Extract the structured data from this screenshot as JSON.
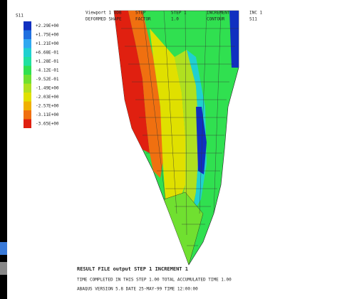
{
  "legend": {
    "title": "S11",
    "labels": [
      "+2.29E+00",
      "+1.75E+00",
      "+1.21E+00",
      "+6.68E-01",
      "+1.28E-01",
      "-4.12E-01",
      "-9.52E-01",
      "-1.49E+00",
      "-2.03E+00",
      "-2.57E+00",
      "-3.11E+00",
      "-3.65E+00"
    ],
    "colors": [
      "#1030c0",
      "#2070e0",
      "#30a8f0",
      "#20d0d0",
      "#20e0a0",
      "#30e050",
      "#70e030",
      "#b0e020",
      "#e0e000",
      "#f0b000",
      "#f07010",
      "#e02010"
    ]
  },
  "header": {
    "line1": [
      "Viewport 1 ODB",
      "STEP",
      "STEP 1",
      "INCREMENT",
      "INC 1"
    ],
    "line2": [
      "DEFORMED SHAPE",
      "FACTOR",
      "1.0",
      "CONTOUR",
      "S11"
    ]
  },
  "footer": {
    "line1": "RESULT FILE  output  STEP 1  INCREMENT 1",
    "line2": "TIME COMPLETED IN THIS STEP  1.00      TOTAL ACCUMULATED TIME  1.00",
    "line3": "ABAQUS VERSION  5.8   DATE  25-MAY-99   TIME  12:00:00"
  }
}
